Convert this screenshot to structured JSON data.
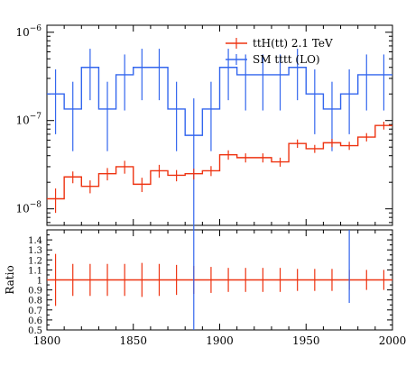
{
  "chart_data": [
    {
      "type": "line",
      "panel": "main",
      "xlim": [
        1800,
        2000
      ],
      "ylim": [
        6.5e-09,
        1.2e-06
      ],
      "yscale": "log",
      "y_tick_labels": [
        {
          "value": 1e-08,
          "base": "10",
          "exp": "−8"
        },
        {
          "value": 1e-07,
          "base": "10",
          "exp": "−7"
        },
        {
          "value": 1e-06,
          "base": "10",
          "exp": "−6"
        }
      ],
      "legend_position": "top-right",
      "bin_edges": [
        1800,
        1810,
        1820,
        1830,
        1840,
        1850,
        1860,
        1870,
        1880,
        1890,
        1900,
        1910,
        1920,
        1930,
        1940,
        1950,
        1960,
        1970,
        1980,
        1990,
        2000
      ],
      "series": [
        {
          "name": "ttH(tt) 2.1 TeV",
          "color": "#ee3311",
          "values": [
            1.3e-08,
            2.3e-08,
            1.8e-08,
            2.5e-08,
            3e-08,
            1.9e-08,
            2.7e-08,
            2.4e-08,
            2.5e-08,
            2.7e-08,
            4.1e-08,
            3.8e-08,
            3.8e-08,
            3.4e-08,
            5.5e-08,
            4.8e-08,
            5.6e-08,
            5.2e-08,
            6.5e-08,
            8.8e-08
          ],
          "err_lo": [
            4e-09,
            3.5e-09,
            3e-09,
            4e-09,
            5e-09,
            3.5e-09,
            4.5e-09,
            3.5e-09,
            3.5e-09,
            3.5e-09,
            5e-09,
            4.5e-09,
            4.5e-09,
            4e-09,
            6e-09,
            5e-09,
            6e-09,
            5.5e-09,
            7e-09,
            9e-09
          ],
          "err_hi": [
            4e-09,
            3.5e-09,
            3e-09,
            4e-09,
            5e-09,
            3.5e-09,
            4.5e-09,
            3.5e-09,
            3.5e-09,
            3.5e-09,
            5e-09,
            4.5e-09,
            4.5e-09,
            4e-09,
            6e-09,
            5e-09,
            6e-09,
            5.5e-09,
            7e-09,
            9e-09
          ]
        },
        {
          "name": "SM tttt (LO)",
          "color": "#3366ee",
          "values": [
            2e-07,
            1.35e-07,
            4e-07,
            1.35e-07,
            3.3e-07,
            4e-07,
            4e-07,
            1.35e-07,
            6.8e-08,
            1.35e-07,
            4e-07,
            3.3e-07,
            3.3e-07,
            3.3e-07,
            4e-07,
            2e-07,
            1.35e-07,
            2e-07,
            3.3e-07,
            3.3e-07
          ],
          "err_lo": [
            1.3e-07,
            9e-08,
            2.3e-07,
            9e-08,
            2e-07,
            2.3e-07,
            2.3e-07,
            9e-08,
            6.5e-08,
            9e-08,
            2.3e-07,
            2e-07,
            2e-07,
            2e-07,
            2.3e-07,
            1.3e-07,
            9e-08,
            1.3e-07,
            2e-07,
            2e-07
          ],
          "err_hi": [
            1.8e-07,
            1.4e-07,
            2.5e-07,
            1.4e-07,
            2.3e-07,
            2.5e-07,
            2.5e-07,
            1.4e-07,
            1.1e-07,
            1.4e-07,
            2.5e-07,
            2.3e-07,
            2.3e-07,
            2.3e-07,
            2.5e-07,
            1.8e-07,
            1.4e-07,
            1.8e-07,
            2.3e-07,
            2.3e-07
          ]
        }
      ]
    },
    {
      "type": "line",
      "panel": "ratio",
      "ylabel": "Ratio",
      "xlim": [
        1800,
        2000
      ],
      "ylim": [
        0.5,
        1.5
      ],
      "x_ticks": [
        1800,
        1850,
        1900,
        1950,
        2000
      ],
      "y_ticks": [
        0.5,
        0.6,
        0.7,
        0.8,
        0.9,
        1,
        1.1,
        1.2,
        1.3,
        1.4
      ],
      "bin_edges": [
        1800,
        1810,
        1820,
        1830,
        1840,
        1850,
        1860,
        1870,
        1880,
        1890,
        1900,
        1910,
        1920,
        1930,
        1940,
        1950,
        1960,
        1970,
        1980,
        1990,
        2000
      ],
      "series": [
        {
          "name": "ttH(tt) 2.1 TeV",
          "color": "#ee3311",
          "values": [
            1,
            1,
            1,
            1,
            1,
            1,
            1,
            1,
            1,
            1,
            1,
            1,
            1,
            1,
            1,
            1,
            1,
            1,
            1,
            1
          ],
          "err": [
            0.26,
            0.16,
            0.16,
            0.16,
            0.16,
            0.17,
            0.16,
            0.15,
            0.14,
            0.13,
            0.12,
            0.12,
            0.12,
            0.12,
            0.11,
            0.11,
            0.11,
            0.1,
            0.1,
            0.1
          ]
        },
        {
          "name": "SM tttt (LO)",
          "color": "#3366ee",
          "partial_bins": [
            {
              "bin": 8,
              "lo": 0.0,
              "hi": 1.5
            },
            {
              "bin": 17,
              "lo": 0.77,
              "hi": 1.5
            }
          ]
        }
      ]
    }
  ]
}
